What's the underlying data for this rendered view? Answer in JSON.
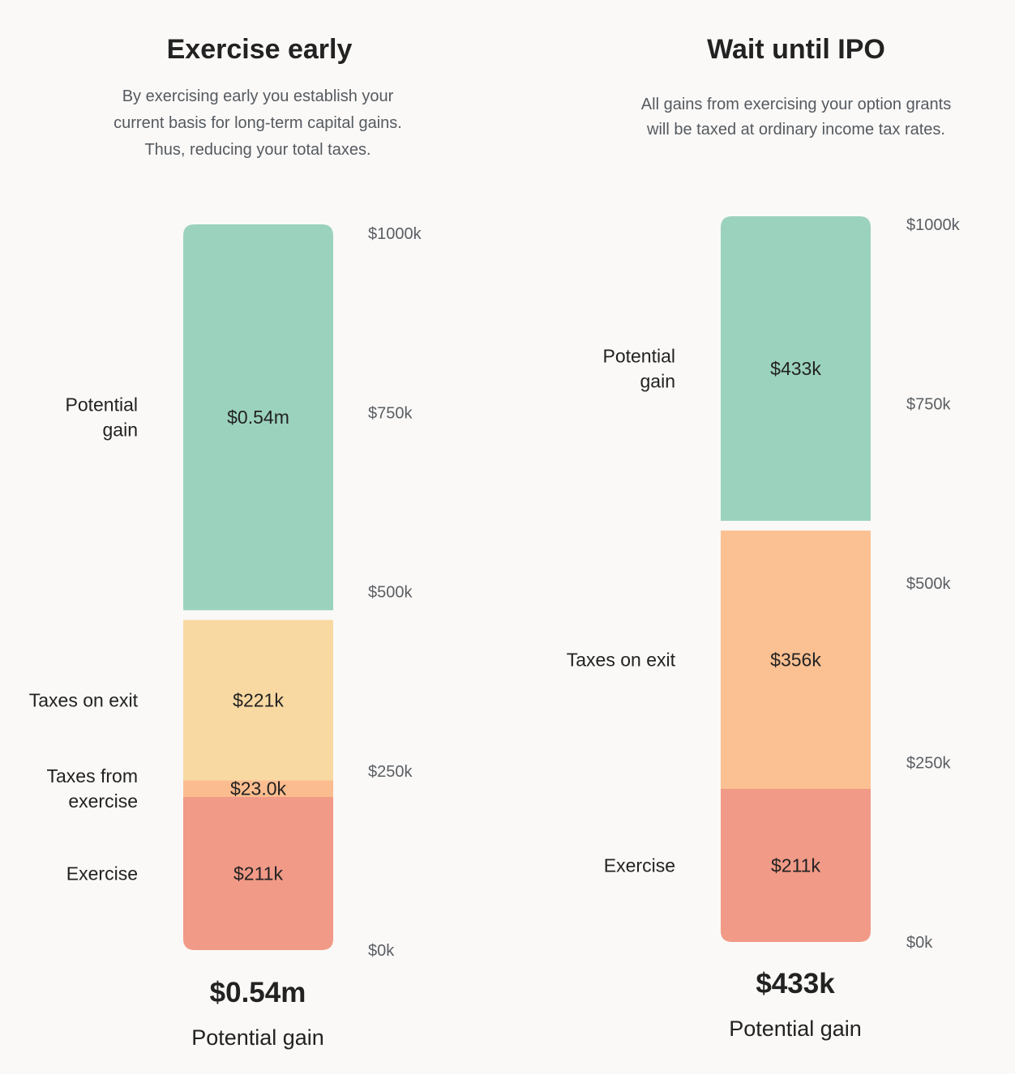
{
  "chart_data": [
    {
      "type": "stacked-bar",
      "title": "Exercise early",
      "subtitle_lines": [
        "By exercising early you establish your",
        "current basis for long-term capital gains.",
        "Thus, reducing your total taxes."
      ],
      "ylim": [
        0,
        1000
      ],
      "y_ticks": [
        "$0k",
        "$250k",
        "$500k",
        "$750k",
        "$1000k"
      ],
      "segments": [
        {
          "name": "Exercise",
          "value": 211,
          "label": "$211k",
          "color": "#f19a87",
          "side_label": [
            "Exercise"
          ]
        },
        {
          "name": "Taxes from exercise",
          "value": 23,
          "label": "$23.0k",
          "color": "#fbbd8f",
          "side_label": [
            "Taxes from",
            "exercise"
          ]
        },
        {
          "name": "Taxes on exit",
          "value": 221,
          "label": "$221k",
          "color": "#f9d9a2",
          "side_label": [
            "Taxes on exit"
          ]
        },
        {
          "name": "Potential gain",
          "value": 545,
          "label": "$0.54m",
          "color": "#9bd2be",
          "side_label": [
            "Potential",
            "gain"
          ]
        }
      ],
      "total_value": "$0.54m",
      "total_caption": "Potential gain"
    },
    {
      "type": "stacked-bar",
      "title": "Wait until IPO",
      "subtitle_lines": [
        "All gains from exercising your option grants",
        "will be taxed at ordinary income tax rates."
      ],
      "ylim": [
        0,
        1000
      ],
      "y_ticks": [
        "$0k",
        "$250k",
        "$500k",
        "$750k",
        "$1000k"
      ],
      "segments": [
        {
          "name": "Exercise",
          "value": 211,
          "label": "$211k",
          "color": "#f19a87",
          "side_label": [
            "Exercise"
          ]
        },
        {
          "name": "Taxes on exit",
          "value": 356,
          "label": "$356k",
          "color": "#fbc193",
          "side_label": [
            "Taxes on exit"
          ]
        },
        {
          "name": "Potential gain",
          "value": 433,
          "label": "$433k",
          "color": "#9bd2be",
          "side_label": [
            "Potential",
            "gain"
          ]
        }
      ],
      "total_value": "$433k",
      "total_caption": "Potential gain"
    }
  ]
}
